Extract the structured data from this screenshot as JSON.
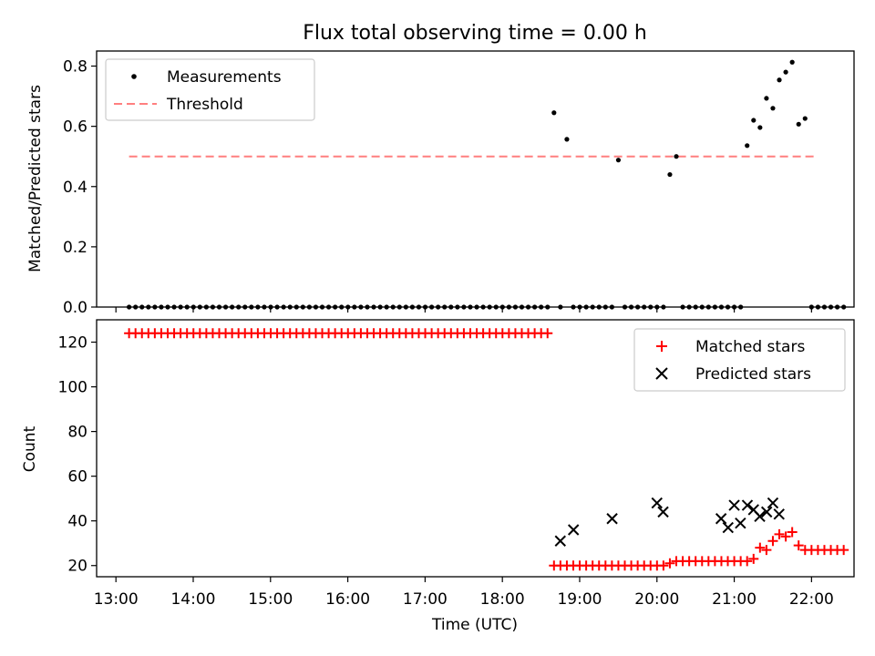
{
  "chart_data": [
    {
      "type": "scatter",
      "title": "Flux total observing time = 0.00 h",
      "xlabel": "",
      "ylabel": "Matched/Predicted stars",
      "xlim_hours": [
        12.75,
        22.55
      ],
      "ylim": [
        0,
        0.85
      ],
      "yticks": [
        "0.0",
        "0.2",
        "0.4",
        "0.6",
        "0.8"
      ],
      "legend": {
        "placement": "upper-left",
        "entries": [
          "Measurements",
          "Threshold"
        ]
      },
      "threshold": {
        "name": "Threshold",
        "value": 0.5,
        "x_start_hours": 13.17,
        "x_end_hours": 22.08,
        "color": "#ff7f7f"
      },
      "series": [
        {
          "name": "Measurements",
          "color": "#000000",
          "x_start_hours": 13.17,
          "x_step_hours": 0.0833,
          "values": [
            0,
            0,
            0,
            0,
            0,
            0,
            0,
            0,
            0,
            0,
            0,
            0,
            0,
            0,
            0,
            0,
            0,
            0,
            0,
            0,
            0,
            0,
            0,
            0,
            0,
            0,
            0,
            0,
            0,
            0,
            0,
            0,
            0,
            0,
            0,
            0,
            0,
            0,
            0,
            0,
            0,
            0,
            0,
            0,
            0,
            0,
            0,
            0,
            0,
            0,
            0,
            0,
            0,
            0,
            0,
            0,
            0,
            0,
            0,
            0,
            0,
            0,
            0,
            0,
            0,
            0,
            0.645,
            0,
            0.557,
            0,
            0,
            0,
            0,
            0,
            0,
            0,
            0.488,
            0,
            0,
            0,
            0,
            0,
            0,
            0,
            0.44,
            0.5,
            0,
            0,
            0,
            0,
            0,
            0,
            0,
            0,
            0,
            0,
            0.536,
            0.62,
            0.596,
            0.693,
            0.66,
            0.754,
            0.78,
            0.813,
            0.607,
            0.626,
            0,
            0,
            0,
            0,
            0,
            0
          ]
        }
      ]
    },
    {
      "type": "scatter",
      "title": "",
      "xlabel": "Time (UTC)",
      "ylabel": "Count",
      "xlim_hours": [
        12.75,
        22.55
      ],
      "ylim": [
        15,
        130
      ],
      "yticks": [
        "20",
        "40",
        "60",
        "80",
        "100",
        "120"
      ],
      "xticks": [
        {
          "label": "13:00",
          "hours": 13
        },
        {
          "label": "14:00",
          "hours": 14
        },
        {
          "label": "15:00",
          "hours": 15
        },
        {
          "label": "16:00",
          "hours": 16
        },
        {
          "label": "17:00",
          "hours": 17
        },
        {
          "label": "18:00",
          "hours": 18
        },
        {
          "label": "19:00",
          "hours": 19
        },
        {
          "label": "20:00",
          "hours": 20
        },
        {
          "label": "21:00",
          "hours": 21
        },
        {
          "label": "22:00",
          "hours": 22
        }
      ],
      "legend": {
        "placement": "upper-right",
        "entries": [
          "Matched stars",
          "Predicted stars"
        ]
      },
      "series": [
        {
          "name": "Matched stars",
          "marker": "+",
          "color": "#ff0000",
          "x_start_hours": 13.17,
          "x_step_hours": 0.0833,
          "values": [
            124,
            124,
            124,
            124,
            124,
            124,
            124,
            124,
            124,
            124,
            124,
            124,
            124,
            124,
            124,
            124,
            124,
            124,
            124,
            124,
            124,
            124,
            124,
            124,
            124,
            124,
            124,
            124,
            124,
            124,
            124,
            124,
            124,
            124,
            124,
            124,
            124,
            124,
            124,
            124,
            124,
            124,
            124,
            124,
            124,
            124,
            124,
            124,
            124,
            124,
            124,
            124,
            124,
            124,
            124,
            124,
            124,
            124,
            124,
            124,
            124,
            124,
            124,
            124,
            124,
            124,
            20,
            20,
            20,
            20,
            20,
            20,
            20,
            20,
            20,
            20,
            20,
            20,
            20,
            20,
            20,
            20,
            20,
            20,
            21,
            22,
            22,
            22,
            22,
            22,
            22,
            22,
            22,
            22,
            22,
            22,
            22,
            23,
            28,
            27,
            31,
            34,
            33,
            35,
            29,
            27,
            27,
            27,
            27,
            27,
            27,
            27
          ]
        },
        {
          "name": "Predicted stars",
          "marker": "x",
          "color": "#000000",
          "points": [
            [
              18.75,
              31
            ],
            [
              18.92,
              36
            ],
            [
              19.42,
              41
            ],
            [
              20.0,
              48
            ],
            [
              20.08,
              44
            ],
            [
              20.83,
              41
            ],
            [
              20.92,
              37
            ],
            [
              21.0,
              47
            ],
            [
              21.08,
              39
            ],
            [
              21.17,
              47
            ],
            [
              21.25,
              45
            ],
            [
              21.33,
              42
            ],
            [
              21.42,
              44
            ],
            [
              21.5,
              48
            ],
            [
              21.58,
              43
            ]
          ]
        }
      ]
    }
  ]
}
